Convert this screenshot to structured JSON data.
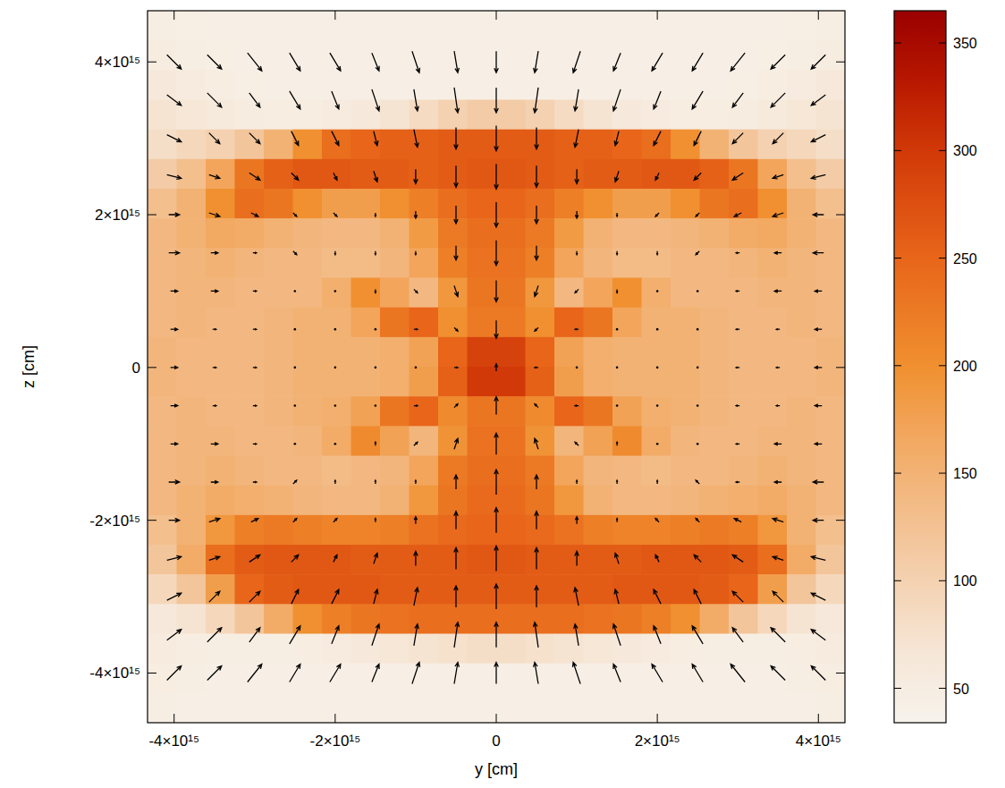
{
  "chart_data": {
    "type": "heatmap",
    "xlabel": "y [cm]",
    "ylabel": "z [cm]",
    "xlim": [
      -4330000000000000.0,
      4330000000000000.0
    ],
    "ylim": [
      -4650000000000000.0,
      4670000000000000.0
    ],
    "xticks": [
      {
        "value": -4000000000000000.0,
        "label": "-4×10¹⁵"
      },
      {
        "value": -2000000000000000.0,
        "label": "-2×10¹⁵"
      },
      0,
      {
        "value": 2000000000000000.0,
        "label": "2×10¹⁵"
      },
      {
        "value": 4000000000000000.0,
        "label": "4×10¹⁵"
      }
    ],
    "yticks": [
      {
        "value": -4000000000000000.0,
        "label": "-4×10¹⁵"
      },
      {
        "value": -2000000000000000.0,
        "label": "-2×10¹⁵"
      },
      0,
      {
        "value": 2000000000000000.0,
        "label": "2×10¹⁵"
      },
      {
        "value": 4000000000000000.0,
        "label": "4×10¹⁵"
      }
    ],
    "values": [
      [
        48,
        46,
        45,
        44,
        44,
        44,
        44,
        44,
        44,
        44,
        44,
        44,
        44,
        44,
        44,
        44,
        44,
        44,
        44,
        44,
        44,
        45,
        46,
        48
      ],
      [
        52,
        48,
        46,
        45,
        44,
        44,
        44,
        44,
        44,
        44,
        44,
        44,
        44,
        44,
        44,
        44,
        44,
        44,
        44,
        44,
        45,
        46,
        48,
        52
      ],
      [
        60,
        55,
        50,
        46,
        45,
        45,
        45,
        45,
        45,
        45,
        45,
        45,
        45,
        45,
        45,
        45,
        45,
        45,
        45,
        45,
        46,
        50,
        55,
        60
      ],
      [
        70,
        65,
        58,
        52,
        50,
        50,
        55,
        60,
        70,
        85,
        100,
        110,
        110,
        100,
        85,
        70,
        60,
        55,
        50,
        50,
        52,
        58,
        65,
        70
      ],
      [
        80,
        90,
        100,
        120,
        150,
        200,
        240,
        250,
        255,
        255,
        260,
        260,
        260,
        260,
        255,
        255,
        250,
        240,
        200,
        150,
        120,
        100,
        90,
        80
      ],
      [
        110,
        130,
        170,
        230,
        255,
        265,
        265,
        260,
        260,
        255,
        260,
        265,
        265,
        260,
        255,
        260,
        260,
        265,
        265,
        255,
        230,
        170,
        130,
        110
      ],
      [
        130,
        150,
        200,
        240,
        230,
        200,
        180,
        180,
        200,
        220,
        240,
        250,
        250,
        240,
        220,
        200,
        180,
        180,
        200,
        230,
        240,
        200,
        150,
        130
      ],
      [
        140,
        150,
        165,
        160,
        150,
        145,
        140,
        140,
        150,
        185,
        225,
        240,
        240,
        225,
        185,
        150,
        140,
        140,
        145,
        150,
        160,
        165,
        150,
        140
      ],
      [
        140,
        145,
        150,
        145,
        140,
        140,
        135,
        135,
        145,
        170,
        220,
        235,
        235,
        220,
        170,
        145,
        135,
        135,
        140,
        140,
        145,
        150,
        145,
        140
      ],
      [
        140,
        145,
        145,
        140,
        140,
        140,
        155,
        200,
        170,
        140,
        190,
        230,
        230,
        190,
        140,
        170,
        200,
        155,
        140,
        140,
        140,
        145,
        145,
        140
      ],
      [
        140,
        145,
        140,
        140,
        145,
        150,
        150,
        170,
        230,
        250,
        200,
        225,
        225,
        200,
        250,
        230,
        170,
        150,
        150,
        145,
        140,
        140,
        145,
        140
      ],
      [
        145,
        140,
        140,
        140,
        145,
        150,
        150,
        150,
        155,
        175,
        250,
        290,
        290,
        250,
        175,
        155,
        150,
        150,
        150,
        145,
        140,
        140,
        140,
        145
      ],
      [
        145,
        140,
        140,
        140,
        145,
        150,
        150,
        150,
        155,
        180,
        255,
        300,
        300,
        255,
        180,
        155,
        150,
        150,
        150,
        145,
        140,
        140,
        140,
        145
      ],
      [
        140,
        145,
        140,
        140,
        145,
        150,
        155,
        175,
        230,
        250,
        205,
        230,
        230,
        205,
        250,
        230,
        175,
        155,
        150,
        145,
        140,
        140,
        145,
        140
      ],
      [
        140,
        145,
        145,
        140,
        140,
        145,
        160,
        205,
        175,
        145,
        195,
        235,
        235,
        195,
        145,
        175,
        205,
        160,
        145,
        140,
        140,
        145,
        145,
        140
      ],
      [
        140,
        145,
        150,
        145,
        140,
        140,
        135,
        140,
        145,
        170,
        225,
        240,
        240,
        225,
        170,
        145,
        140,
        135,
        140,
        140,
        145,
        150,
        145,
        140
      ],
      [
        140,
        150,
        160,
        155,
        150,
        145,
        140,
        140,
        150,
        190,
        230,
        245,
        245,
        230,
        190,
        150,
        140,
        140,
        145,
        150,
        155,
        160,
        150,
        140
      ],
      [
        130,
        150,
        190,
        220,
        225,
        220,
        215,
        215,
        220,
        235,
        245,
        250,
        250,
        245,
        235,
        220,
        215,
        215,
        220,
        225,
        220,
        190,
        150,
        130
      ],
      [
        120,
        160,
        240,
        260,
        265,
        265,
        265,
        260,
        260,
        260,
        260,
        265,
        265,
        260,
        260,
        260,
        260,
        265,
        265,
        265,
        260,
        240,
        160,
        120
      ],
      [
        90,
        120,
        180,
        250,
        260,
        265,
        265,
        265,
        260,
        260,
        260,
        260,
        260,
        260,
        260,
        260,
        265,
        265,
        265,
        260,
        250,
        180,
        120,
        90
      ],
      [
        60,
        70,
        90,
        120,
        160,
        200,
        220,
        230,
        235,
        240,
        240,
        240,
        240,
        240,
        240,
        235,
        230,
        220,
        200,
        160,
        120,
        90,
        70,
        60
      ],
      [
        55,
        50,
        48,
        47,
        47,
        50,
        55,
        60,
        65,
        70,
        75,
        80,
        80,
        75,
        70,
        65,
        60,
        55,
        50,
        47,
        47,
        48,
        50,
        55
      ],
      [
        50,
        47,
        45,
        44,
        44,
        44,
        44,
        44,
        44,
        44,
        44,
        44,
        44,
        44,
        44,
        44,
        44,
        44,
        44,
        44,
        44,
        45,
        47,
        50
      ],
      [
        47,
        45,
        44,
        44,
        44,
        44,
        44,
        44,
        44,
        44,
        44,
        44,
        44,
        44,
        44,
        44,
        44,
        44,
        44,
        44,
        44,
        44,
        45,
        47
      ]
    ],
    "colorbar": {
      "range": [
        34,
        365
      ],
      "ticks": [
        50,
        100,
        150,
        200,
        250,
        300,
        350
      ]
    },
    "vectors": {
      "y": [
        -4000000000000000.0,
        -3500000000000000.0,
        -3000000000000000.0,
        -2500000000000000.0,
        -2000000000000000.0,
        -1500000000000000.0,
        -1000000000000000.0,
        -500000000000000.0,
        0,
        500000000000000.0,
        1000000000000000.0,
        1500000000000000.0,
        2000000000000000.0,
        2500000000000000.0,
        3000000000000000.0,
        3500000000000000.0,
        4000000000000000.0
      ],
      "z": [
        4000000000000000.0,
        3500000000000000.0,
        3000000000000000.0,
        2500000000000000.0,
        2000000000000000.0,
        1500000000000000.0,
        1000000000000000.0,
        500000000000000.0,
        0,
        -500000000000000.0,
        -1000000000000000.0,
        -1500000000000000.0,
        -2000000000000000.0,
        -2500000000000000.0,
        -3000000000000000.0,
        -3500000000000000.0,
        -4000000000000000.0
      ],
      "u": [
        [
          4,
          4,
          4,
          3,
          3,
          2,
          2,
          1,
          0,
          -1,
          -2,
          -2,
          -3,
          -3,
          -4,
          -4,
          -4
        ],
        [
          4,
          4,
          3,
          3,
          2,
          2,
          1,
          1,
          0,
          -1,
          -1,
          -2,
          -2,
          -3,
          -3,
          -4,
          -4
        ],
        [
          4,
          3,
          3,
          2,
          2,
          1,
          1,
          0,
          0,
          0,
          -1,
          -1,
          -2,
          -2,
          -3,
          -3,
          -4
        ],
        [
          4,
          3,
          3,
          2,
          1,
          1,
          0,
          0,
          0,
          0,
          0,
          -1,
          -1,
          -2,
          -3,
          -3,
          -4
        ],
        [
          3,
          3,
          2,
          1,
          1,
          0,
          0,
          0,
          0,
          0,
          0,
          0,
          -1,
          -1,
          -2,
          -3,
          -3
        ],
        [
          3,
          2,
          1,
          1,
          0,
          0,
          0,
          0,
          0,
          0,
          0,
          0,
          0,
          -1,
          -1,
          -2,
          -3
        ],
        [
          2,
          2,
          1,
          0,
          0,
          0,
          1,
          1,
          0,
          -1,
          -1,
          0,
          0,
          0,
          -1,
          -2,
          -2
        ],
        [
          2,
          1,
          1,
          0,
          0,
          0,
          1,
          1,
          0,
          -1,
          -1,
          0,
          0,
          0,
          -1,
          -1,
          -2
        ],
        [
          2,
          1,
          1,
          0,
          0,
          0,
          0,
          1,
          0,
          -1,
          0,
          0,
          0,
          0,
          -1,
          -1,
          -2
        ],
        [
          2,
          1,
          1,
          0,
          0,
          0,
          1,
          1,
          0,
          -1,
          -1,
          0,
          0,
          0,
          -1,
          -1,
          -2
        ],
        [
          2,
          2,
          1,
          0,
          0,
          0,
          1,
          1,
          0,
          -1,
          -1,
          0,
          0,
          0,
          -1,
          -2,
          -2
        ],
        [
          3,
          2,
          1,
          1,
          0,
          0,
          0,
          0,
          0,
          0,
          0,
          0,
          0,
          -1,
          -1,
          -2,
          -3
        ],
        [
          3,
          3,
          2,
          1,
          1,
          0,
          0,
          0,
          0,
          0,
          0,
          0,
          -1,
          -1,
          -2,
          -3,
          -3
        ],
        [
          4,
          3,
          3,
          2,
          1,
          1,
          0,
          0,
          0,
          0,
          0,
          -1,
          -1,
          -2,
          -3,
          -3,
          -4
        ],
        [
          4,
          3,
          3,
          2,
          2,
          1,
          1,
          0,
          0,
          0,
          -1,
          -1,
          -2,
          -2,
          -3,
          -3,
          -4
        ],
        [
          4,
          4,
          3,
          3,
          2,
          2,
          1,
          1,
          0,
          -1,
          -1,
          -2,
          -2,
          -3,
          -3,
          -4,
          -4
        ],
        [
          4,
          4,
          4,
          3,
          3,
          2,
          2,
          1,
          0,
          -1,
          -2,
          -2,
          -3,
          -3,
          -4,
          -4,
          -4
        ]
      ],
      "w": [
        [
          -4,
          -4,
          -5,
          -5,
          -5,
          -5,
          -6,
          -6,
          -6,
          -6,
          -6,
          -5,
          -5,
          -5,
          -5,
          -4,
          -4
        ],
        [
          -3,
          -4,
          -4,
          -5,
          -5,
          -6,
          -6,
          -7,
          -7,
          -7,
          -6,
          -6,
          -5,
          -5,
          -4,
          -4,
          -3
        ],
        [
          -2,
          -3,
          -3,
          -4,
          -4,
          -4,
          -5,
          -6,
          -7,
          -6,
          -5,
          -4,
          -4,
          -4,
          -3,
          -3,
          -2
        ],
        [
          -1,
          -1,
          -2,
          -2,
          -2,
          -3,
          -4,
          -6,
          -7,
          -6,
          -4,
          -3,
          -2,
          -2,
          -2,
          -1,
          -1
        ],
        [
          0,
          -1,
          -1,
          -1,
          -1,
          -1,
          -2,
          -5,
          -7,
          -5,
          -2,
          -1,
          -1,
          -1,
          -1,
          -1,
          0
        ],
        [
          0,
          0,
          0,
          -1,
          -1,
          -1,
          -1,
          -4,
          -7,
          -4,
          -1,
          -1,
          -1,
          -1,
          0,
          0,
          0
        ],
        [
          0,
          0,
          0,
          0,
          0,
          -1,
          -1,
          -3,
          -6,
          -3,
          -1,
          -1,
          0,
          0,
          0,
          0,
          0
        ],
        [
          0,
          0,
          0,
          0,
          0,
          0,
          0,
          -1,
          -5,
          -1,
          0,
          0,
          0,
          0,
          0,
          0,
          0
        ],
        [
          0,
          0,
          0,
          0,
          0,
          0,
          0,
          0,
          2,
          0,
          0,
          0,
          0,
          0,
          0,
          0,
          0
        ],
        [
          0,
          0,
          0,
          0,
          0,
          0,
          0,
          1,
          5,
          1,
          0,
          0,
          0,
          0,
          0,
          0,
          0
        ],
        [
          0,
          0,
          0,
          0,
          0,
          1,
          1,
          3,
          6,
          3,
          1,
          1,
          0,
          0,
          0,
          0,
          0
        ],
        [
          0,
          0,
          0,
          1,
          1,
          1,
          1,
          4,
          7,
          4,
          1,
          1,
          1,
          1,
          0,
          0,
          0
        ],
        [
          0,
          1,
          1,
          1,
          1,
          1,
          2,
          5,
          7,
          5,
          2,
          1,
          1,
          1,
          1,
          1,
          0
        ],
        [
          1,
          1,
          2,
          2,
          2,
          3,
          4,
          6,
          7,
          6,
          4,
          3,
          2,
          2,
          2,
          1,
          1
        ],
        [
          2,
          3,
          3,
          4,
          4,
          4,
          5,
          6,
          7,
          6,
          5,
          4,
          4,
          4,
          3,
          3,
          2
        ],
        [
          3,
          4,
          4,
          5,
          5,
          6,
          6,
          7,
          7,
          7,
          6,
          6,
          5,
          5,
          4,
          4,
          3
        ],
        [
          4,
          4,
          5,
          5,
          5,
          5,
          6,
          6,
          6,
          6,
          6,
          5,
          5,
          5,
          5,
          4,
          4
        ]
      ]
    }
  }
}
